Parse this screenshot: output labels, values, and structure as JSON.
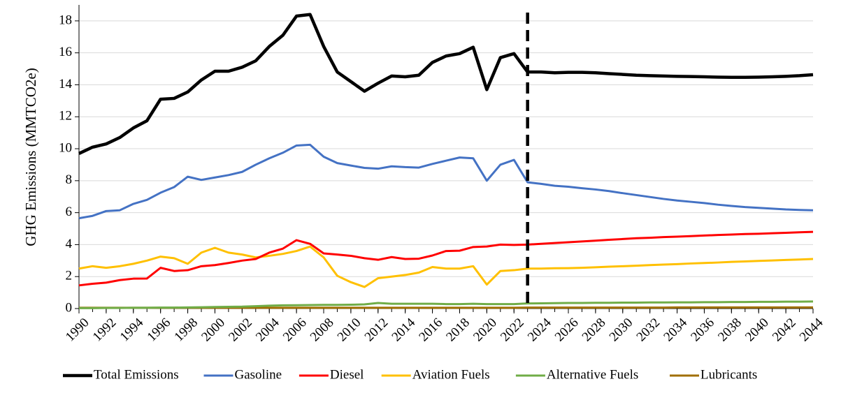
{
  "chart_data": {
    "type": "line",
    "ylabel": "GHG Emissions (MMTCO2e)",
    "x": [
      1990,
      1991,
      1992,
      1993,
      1994,
      1995,
      1996,
      1997,
      1998,
      1999,
      2000,
      2001,
      2002,
      2003,
      2004,
      2005,
      2006,
      2007,
      2008,
      2009,
      2010,
      2011,
      2012,
      2013,
      2014,
      2015,
      2016,
      2017,
      2018,
      2019,
      2020,
      2021,
      2022,
      2023,
      2024,
      2025,
      2026,
      2027,
      2028,
      2029,
      2030,
      2031,
      2032,
      2033,
      2034,
      2035,
      2036,
      2037,
      2038,
      2039,
      2040,
      2041,
      2042,
      2043,
      2044
    ],
    "xlim": [
      1990,
      2044
    ],
    "xticks": [
      1990,
      1992,
      1994,
      1996,
      1998,
      2000,
      2002,
      2004,
      2006,
      2008,
      2010,
      2012,
      2014,
      2016,
      2018,
      2020,
      2022,
      2024,
      2026,
      2028,
      2030,
      2032,
      2034,
      2036,
      2038,
      2040,
      2042,
      2044
    ],
    "ylim": [
      0,
      19
    ],
    "yticks": [
      0,
      2,
      4,
      6,
      8,
      10,
      12,
      14,
      16,
      18
    ],
    "grid": true,
    "vline_x": 2023,
    "legend": "bottom",
    "series": [
      {
        "name": "Total Emissions",
        "color": "#000000",
        "values": [
          9.7,
          10.1,
          10.3,
          10.7,
          11.3,
          11.75,
          13.1,
          13.15,
          13.55,
          14.3,
          14.85,
          14.85,
          15.1,
          15.5,
          16.4,
          17.1,
          18.3,
          18.4,
          16.4,
          14.8,
          14.2,
          13.6,
          14.1,
          14.55,
          14.5,
          14.6,
          15.4,
          15.8,
          15.95,
          16.35,
          13.7,
          15.7,
          15.95,
          14.8,
          14.8,
          14.75,
          14.78,
          14.78,
          14.75,
          14.7,
          14.65,
          14.6,
          14.57,
          14.55,
          14.53,
          14.52,
          14.5,
          14.48,
          14.47,
          14.47,
          14.48,
          14.5,
          14.53,
          14.57,
          14.63
        ]
      },
      {
        "name": "Gasoline",
        "color": "#4472c4",
        "values": [
          5.65,
          5.8,
          6.1,
          6.15,
          6.55,
          6.8,
          7.25,
          7.6,
          8.25,
          8.05,
          8.2,
          8.35,
          8.55,
          9.0,
          9.4,
          9.75,
          10.2,
          10.25,
          9.5,
          9.1,
          8.95,
          8.8,
          8.75,
          8.9,
          8.85,
          8.82,
          9.05,
          9.25,
          9.45,
          9.4,
          8.0,
          9.0,
          9.3,
          7.9,
          7.8,
          7.68,
          7.62,
          7.53,
          7.45,
          7.35,
          7.22,
          7.1,
          6.98,
          6.86,
          6.76,
          6.68,
          6.6,
          6.5,
          6.42,
          6.35,
          6.3,
          6.25,
          6.2,
          6.17,
          6.15
        ]
      },
      {
        "name": "Diesel",
        "color": "#ff0000",
        "values": [
          1.45,
          1.55,
          1.62,
          1.78,
          1.87,
          1.88,
          2.55,
          2.35,
          2.4,
          2.65,
          2.72,
          2.85,
          3.0,
          3.1,
          3.5,
          3.75,
          4.28,
          4.05,
          3.45,
          3.38,
          3.3,
          3.15,
          3.05,
          3.22,
          3.1,
          3.12,
          3.32,
          3.6,
          3.62,
          3.85,
          3.88,
          4.0,
          3.98,
          4.0,
          4.05,
          4.1,
          4.15,
          4.2,
          4.25,
          4.3,
          4.35,
          4.4,
          4.43,
          4.47,
          4.5,
          4.53,
          4.57,
          4.6,
          4.63,
          4.66,
          4.68,
          4.71,
          4.74,
          4.77,
          4.8
        ]
      },
      {
        "name": "Aviation Fuels",
        "color": "#ffc000",
        "values": [
          2.5,
          2.65,
          2.55,
          2.65,
          2.8,
          3.0,
          3.25,
          3.15,
          2.8,
          3.5,
          3.8,
          3.5,
          3.38,
          3.2,
          3.3,
          3.42,
          3.6,
          3.88,
          3.2,
          2.05,
          1.65,
          1.35,
          1.9,
          2.0,
          2.1,
          2.25,
          2.6,
          2.5,
          2.5,
          2.65,
          1.5,
          2.35,
          2.4,
          2.5,
          2.5,
          2.52,
          2.53,
          2.55,
          2.58,
          2.62,
          2.65,
          2.68,
          2.72,
          2.75,
          2.78,
          2.82,
          2.85,
          2.88,
          2.92,
          2.95,
          2.98,
          3.01,
          3.04,
          3.07,
          3.1
        ]
      },
      {
        "name": "Alternative Fuels",
        "color": "#70ad47",
        "values": [
          0.03,
          0.03,
          0.04,
          0.04,
          0.05,
          0.05,
          0.06,
          0.06,
          0.07,
          0.08,
          0.1,
          0.11,
          0.12,
          0.15,
          0.18,
          0.2,
          0.21,
          0.22,
          0.23,
          0.23,
          0.24,
          0.26,
          0.35,
          0.3,
          0.3,
          0.3,
          0.3,
          0.28,
          0.28,
          0.3,
          0.28,
          0.28,
          0.28,
          0.32,
          0.33,
          0.34,
          0.35,
          0.35,
          0.36,
          0.36,
          0.37,
          0.37,
          0.38,
          0.38,
          0.39,
          0.39,
          0.4,
          0.4,
          0.41,
          0.41,
          0.42,
          0.42,
          0.43,
          0.43,
          0.44
        ]
      },
      {
        "name": "Lubricants",
        "color": "#a06f00",
        "values": [
          0.05,
          0.05,
          0.05,
          0.05,
          0.05,
          0.05,
          0.05,
          0.05,
          0.05,
          0.05,
          0.05,
          0.05,
          0.05,
          0.05,
          0.05,
          0.05,
          0.05,
          0.05,
          0.05,
          0.05,
          0.05,
          0.05,
          0.05,
          0.05,
          0.05,
          0.05,
          0.05,
          0.05,
          0.05,
          0.05,
          0.05,
          0.05,
          0.05,
          0.06,
          0.06,
          0.06,
          0.06,
          0.06,
          0.06,
          0.06,
          0.06,
          0.06,
          0.06,
          0.06,
          0.07,
          0.07,
          0.07,
          0.07,
          0.07,
          0.07,
          0.07,
          0.07,
          0.07,
          0.07,
          0.07
        ]
      }
    ]
  }
}
